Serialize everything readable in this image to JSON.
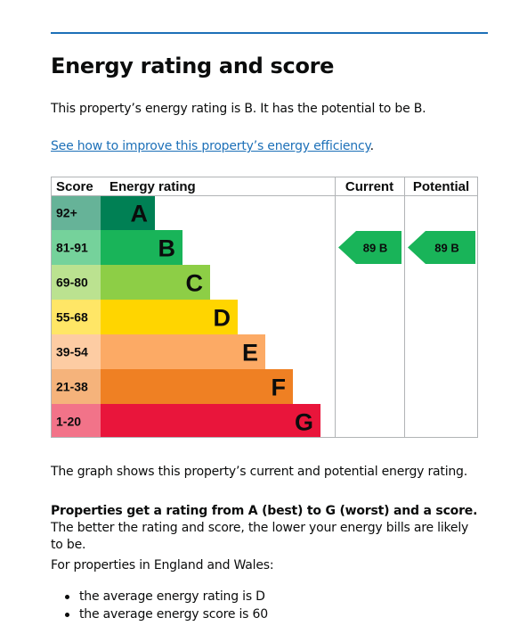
{
  "heading": "Energy rating and score",
  "intro": "This property’s energy rating is B. It has the potential to be B.",
  "improve_link": "See how to improve this property’s energy efficiency",
  "improve_link_suffix": ".",
  "graph_caption": "The graph shows this property’s current and potential energy rating.",
  "ratings_info": {
    "bold": "Properties get a rating from A (best) to G (worst) and a score.",
    "rest": " The better the rating and score, the lower your energy bills are likely to be."
  },
  "region_intro": "For properties in England and Wales:",
  "averages": [
    "the average energy rating is D",
    "the average energy score is 60"
  ],
  "chart_data": {
    "type": "table",
    "headers": {
      "score": "Score",
      "rating": "Energy rating",
      "current": "Current",
      "potential": "Potential"
    },
    "bands": [
      {
        "score": "92+",
        "letter": "A",
        "color": "#008054",
        "score_bg": "#66b398"
      },
      {
        "score": "81-91",
        "letter": "B",
        "color": "#19b459",
        "score_bg": "#75d29b"
      },
      {
        "score": "69-80",
        "letter": "C",
        "color": "#8dce46",
        "score_bg": "#bbe290"
      },
      {
        "score": "55-68",
        "letter": "D",
        "color": "#ffd500",
        "score_bg": "#ffe666"
      },
      {
        "score": "39-54",
        "letter": "E",
        "color": "#fcaa65",
        "score_bg": "#fdcca3"
      },
      {
        "score": "21-38",
        "letter": "F",
        "color": "#ef8023",
        "score_bg": "#f5b37b"
      },
      {
        "score": "1-20",
        "letter": "G",
        "color": "#e9153b",
        "score_bg": "#f27389"
      }
    ],
    "current": {
      "score": 89,
      "rating": "B",
      "label": "89  B",
      "color": "#19b459"
    },
    "potential": {
      "score": 89,
      "rating": "B",
      "label": "89  B",
      "color": "#19b459"
    }
  }
}
